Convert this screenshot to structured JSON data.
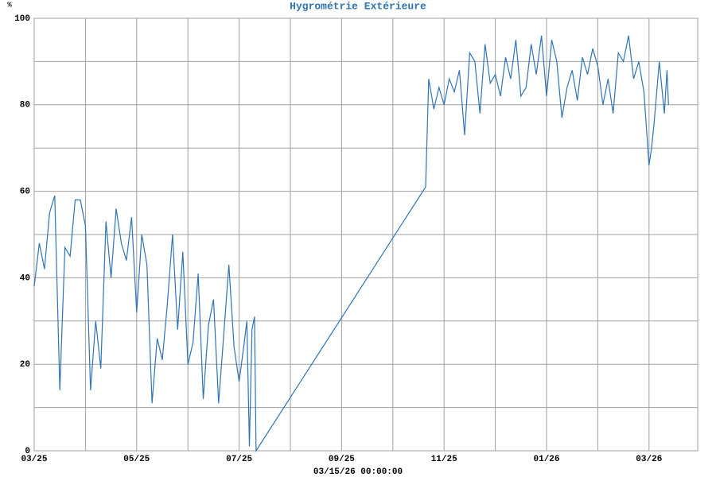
{
  "chart_data": {
    "type": "line",
    "title": "Hygrométrie Extérieure",
    "y_label": "%",
    "x_label": "03/15/26 00:00:00",
    "x": [
      0,
      0.1,
      0.2,
      0.3,
      0.4,
      0.5,
      0.6,
      0.7,
      0.8,
      0.9,
      1.0,
      1.1,
      1.2,
      1.3,
      1.4,
      1.5,
      1.6,
      1.7,
      1.8,
      1.9,
      2.0,
      2.1,
      2.2,
      2.3,
      2.4,
      2.5,
      2.6,
      2.7,
      2.8,
      2.9,
      3.0,
      3.1,
      3.2,
      3.3,
      3.4,
      3.5,
      3.6,
      3.7,
      3.8,
      3.9,
      4.0,
      4.1,
      4.15,
      4.2,
      4.25,
      4.3,
      4.33,
      7.64,
      7.7,
      7.8,
      7.9,
      8.0,
      8.1,
      8.2,
      8.3,
      8.4,
      8.5,
      8.6,
      8.7,
      8.8,
      8.9,
      9.0,
      9.1,
      9.2,
      9.3,
      9.4,
      9.5,
      9.6,
      9.7,
      9.8,
      9.9,
      10.0,
      10.1,
      10.2,
      10.3,
      10.4,
      10.5,
      10.6,
      10.7,
      10.8,
      10.9,
      11.0,
      11.1,
      11.2,
      11.3,
      11.4,
      11.5,
      11.6,
      11.7,
      11.8,
      11.9,
      12.0,
      12.05,
      12.1,
      12.2,
      12.3,
      12.35,
      12.38
    ],
    "series": [
      {
        "color": "#2f74b5",
        "values": [
          38,
          48,
          42,
          55,
          59,
          14,
          47,
          45,
          58,
          58,
          52,
          14,
          30,
          19,
          53,
          40,
          56,
          48,
          44,
          54,
          32,
          50,
          43,
          11,
          26,
          21,
          34,
          50,
          28,
          46,
          20,
          25,
          41,
          12,
          29,
          35,
          11,
          27,
          43,
          24,
          16,
          25,
          30,
          1,
          28,
          31,
          0,
          61,
          86,
          79,
          84,
          80,
          86,
          83,
          88,
          73,
          92,
          90,
          78,
          94,
          85,
          87,
          82,
          91,
          86,
          95,
          82,
          84,
          94,
          87,
          96,
          82,
          95,
          90,
          77,
          84,
          88,
          81,
          91,
          87,
          93,
          89,
          80,
          86,
          78,
          92,
          90,
          96,
          86,
          90,
          83,
          66,
          70,
          76,
          90,
          78,
          88,
          80
        ]
      }
    ],
    "xlim": [
      0,
      12.95
    ],
    "xticks": [
      {
        "value": 0,
        "label": "03/25"
      },
      {
        "value": 2,
        "label": "05/25"
      },
      {
        "value": 4,
        "label": "07/25"
      },
      {
        "value": 6,
        "label": "09/25"
      },
      {
        "value": 8,
        "label": "11/25"
      },
      {
        "value": 10,
        "label": "01/26"
      },
      {
        "value": 12,
        "label": "03/26"
      }
    ],
    "xminorticks": [
      1,
      3,
      5,
      7,
      9,
      11
    ],
    "ylim": [
      0,
      100
    ],
    "yticks": [
      0,
      20,
      40,
      60,
      80,
      100
    ],
    "yminorticks": [
      10,
      30,
      50,
      70,
      90
    ],
    "grid": true
  }
}
